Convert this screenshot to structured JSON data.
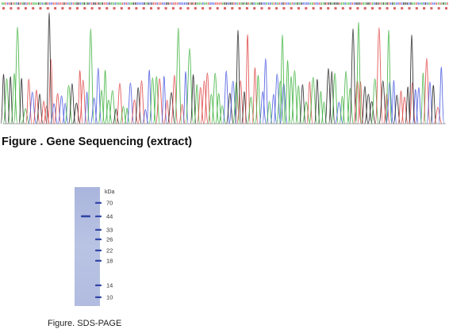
{
  "sequencing": {
    "caption": "Figure . Gene Sequencing (extract)",
    "colors": {
      "A": "#3fb33f",
      "C": "#4a5be0",
      "G": "#222222",
      "T": "#e04848"
    },
    "base_order": [
      "A",
      "C",
      "G",
      "T"
    ]
  },
  "sds_page": {
    "caption": "Figure. SDS-PAGE",
    "unit_label": "kDa",
    "markers": [
      "70",
      "44",
      "33",
      "26",
      "22",
      "18",
      "14",
      "10"
    ],
    "colors": {
      "gel": "#b9c3e3",
      "band": "#3346a6"
    }
  }
}
